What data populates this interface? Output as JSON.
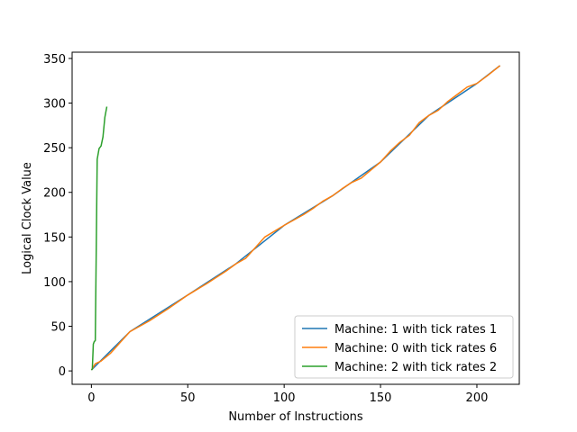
{
  "chart_data": {
    "type": "line",
    "xlabel": "Number of Instructions",
    "ylabel": "Logical Clock Value",
    "xlim": [
      -10,
      222
    ],
    "ylim": [
      -15,
      357
    ],
    "xticks": [
      0,
      50,
      100,
      150,
      200
    ],
    "yticks": [
      0,
      50,
      100,
      150,
      200,
      250,
      300,
      350
    ],
    "grid": false,
    "legend_position": "lower-right",
    "series": [
      {
        "name": "Machine: 1 with tick rates 1",
        "color": "#1f77b4",
        "x": [
          0,
          20,
          50,
          75,
          100,
          125,
          150,
          175,
          200,
          212
        ],
        "y": [
          1,
          44,
          85,
          120,
          163,
          196,
          234,
          286,
          322,
          342
        ]
      },
      {
        "name": "Machine: 0 with tick rates 6",
        "color": "#ff7f0e",
        "x": [
          0,
          2,
          5,
          10,
          15,
          20,
          30,
          40,
          50,
          60,
          70,
          75,
          80,
          85,
          90,
          100,
          110,
          115,
          120,
          125,
          130,
          135,
          140,
          145,
          150,
          155,
          160,
          165,
          170,
          175,
          180,
          185,
          190,
          195,
          200,
          205,
          212
        ],
        "y": [
          1,
          8,
          11,
          20,
          32,
          44,
          56,
          70,
          85,
          98,
          112,
          120,
          126,
          138,
          150,
          163,
          175,
          182,
          190,
          196,
          204,
          211,
          216,
          225,
          234,
          246,
          256,
          264,
          278,
          286,
          292,
          302,
          310,
          318,
          322,
          330,
          342
        ]
      },
      {
        "name": "Machine: 2 with tick rates 2",
        "color": "#2ca02c",
        "x": [
          0,
          0.5,
          1,
          1.5,
          2,
          3,
          4,
          5,
          6,
          7,
          8
        ],
        "y": [
          1,
          2,
          30,
          33,
          34,
          237,
          249,
          252,
          262,
          284,
          296
        ]
      }
    ]
  }
}
